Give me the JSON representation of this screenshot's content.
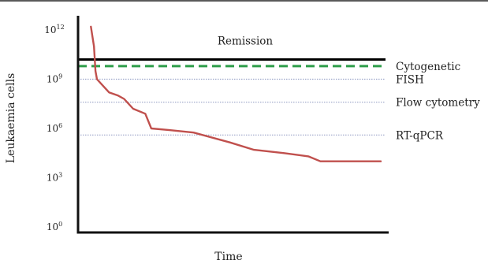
{
  "chart_data": {
    "type": "line",
    "title": "",
    "xlabel": "Time",
    "ylabel": "Leukaemia cells",
    "y_scale": "log10",
    "ylim_exponents": [
      0,
      12
    ],
    "x_ticks_visible": false,
    "y_ticks": [
      {
        "base": "10",
        "exp": "0"
      },
      {
        "base": "10",
        "exp": "3"
      },
      {
        "base": "10",
        "exp": "6"
      },
      {
        "base": "10",
        "exp": "9"
      },
      {
        "base": "10",
        "exp": "12"
      }
    ],
    "thresholds": [
      {
        "name": "Remission",
        "log10_value": 10.2,
        "style": "solid",
        "color": "#000000",
        "label_pos": "above-middle"
      },
      {
        "name": "Cytogenetic",
        "log10_value": 9.8,
        "style": "dashed",
        "color": "#2e9e4a",
        "label_pos": "right"
      },
      {
        "name": "FISH",
        "log10_value": 9.0,
        "style": "dotted",
        "color": "#9aa3c8",
        "label_pos": "right"
      },
      {
        "name": "Flow cytometry",
        "log10_value": 7.6,
        "style": "dotted",
        "color": "#9aa3c8",
        "label_pos": "right"
      },
      {
        "name": "RT-qPCR",
        "log10_value": 5.6,
        "style": "dotted",
        "color": "#9aa3c8",
        "label_pos": "right"
      }
    ],
    "series": [
      {
        "color": "#c0504d",
        "points": [
          [
            0.04,
            12.2
          ],
          [
            0.05,
            11.0
          ],
          [
            0.055,
            9.5
          ],
          [
            0.06,
            9.0
          ],
          [
            0.08,
            8.6
          ],
          [
            0.1,
            8.2
          ],
          [
            0.13,
            8.0
          ],
          [
            0.15,
            7.8
          ],
          [
            0.18,
            7.2
          ],
          [
            0.22,
            6.9
          ],
          [
            0.24,
            6.0
          ],
          [
            0.3,
            5.9
          ],
          [
            0.38,
            5.75
          ],
          [
            0.5,
            5.15
          ],
          [
            0.58,
            4.7
          ],
          [
            0.68,
            4.5
          ],
          [
            0.76,
            4.3
          ],
          [
            0.8,
            4.0
          ],
          [
            1.0,
            4.0
          ]
        ]
      }
    ]
  }
}
